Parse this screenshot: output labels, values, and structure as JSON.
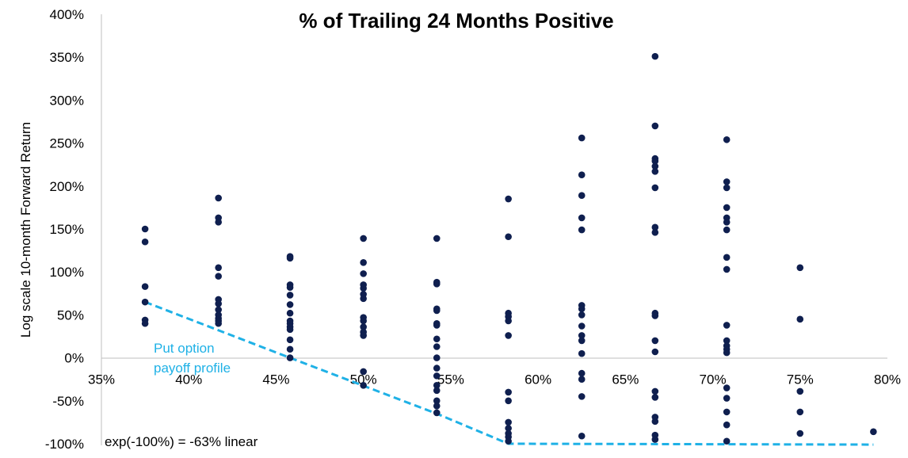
{
  "chart_data": {
    "type": "scatter",
    "title": "% of Trailing 24 Months Positive",
    "xlabel": "",
    "ylabel": "Log scale 10-month Forward Return",
    "xlim": [
      0.35,
      0.8
    ],
    "ylim": [
      -1.0,
      4.0
    ],
    "x_ticks": [
      {
        "value": 0.35,
        "label": "35%"
      },
      {
        "value": 0.4,
        "label": "40%"
      },
      {
        "value": 0.45,
        "label": "45%"
      },
      {
        "value": 0.5,
        "label": "50%"
      },
      {
        "value": 0.55,
        "label": "55%"
      },
      {
        "value": 0.6,
        "label": "60%"
      },
      {
        "value": 0.65,
        "label": "65%"
      },
      {
        "value": 0.7,
        "label": "70%"
      },
      {
        "value": 0.75,
        "label": "75%"
      },
      {
        "value": 0.8,
        "label": "80%"
      }
    ],
    "y_ticks": [
      {
        "value": 4.0,
        "label": "400%"
      },
      {
        "value": 3.5,
        "label": "350%"
      },
      {
        "value": 3.0,
        "label": "300%"
      },
      {
        "value": 2.5,
        "label": "250%"
      },
      {
        "value": 2.0,
        "label": "200%"
      },
      {
        "value": 1.5,
        "label": "150%"
      },
      {
        "value": 1.0,
        "label": "100%"
      },
      {
        "value": 0.5,
        "label": "50%"
      },
      {
        "value": 0.0,
        "label": "0%"
      },
      {
        "value": -0.5,
        "label": "-50%"
      },
      {
        "value": -1.0,
        "label": "-100%"
      }
    ],
    "grid": false,
    "legend": "none",
    "colors": {
      "points": "#0f1f4f",
      "put_line": "#1fb1e6",
      "axis": "#bfbfbf"
    },
    "series": [
      {
        "color": "#0f1f4f",
        "points": [
          {
            "x": 0.375,
            "y": 1.5
          },
          {
            "x": 0.375,
            "y": 1.35
          },
          {
            "x": 0.375,
            "y": 0.83
          },
          {
            "x": 0.375,
            "y": 0.65
          },
          {
            "x": 0.375,
            "y": 0.44
          },
          {
            "x": 0.375,
            "y": 0.4
          },
          {
            "x": 0.417,
            "y": 1.86
          },
          {
            "x": 0.417,
            "y": 1.63
          },
          {
            "x": 0.417,
            "y": 1.58
          },
          {
            "x": 0.417,
            "y": 1.05
          },
          {
            "x": 0.417,
            "y": 0.95
          },
          {
            "x": 0.417,
            "y": 0.68
          },
          {
            "x": 0.417,
            "y": 0.63
          },
          {
            "x": 0.417,
            "y": 0.56
          },
          {
            "x": 0.417,
            "y": 0.5
          },
          {
            "x": 0.417,
            "y": 0.46
          },
          {
            "x": 0.417,
            "y": 0.43
          },
          {
            "x": 0.417,
            "y": 0.4
          },
          {
            "x": 0.458,
            "y": 1.18
          },
          {
            "x": 0.458,
            "y": 1.16
          },
          {
            "x": 0.458,
            "y": 0.85
          },
          {
            "x": 0.458,
            "y": 0.82
          },
          {
            "x": 0.458,
            "y": 0.73
          },
          {
            "x": 0.458,
            "y": 0.62
          },
          {
            "x": 0.458,
            "y": 0.52
          },
          {
            "x": 0.458,
            "y": 0.43
          },
          {
            "x": 0.458,
            "y": 0.4
          },
          {
            "x": 0.458,
            "y": 0.36
          },
          {
            "x": 0.458,
            "y": 0.33
          },
          {
            "x": 0.458,
            "y": 0.21
          },
          {
            "x": 0.458,
            "y": 0.1
          },
          {
            "x": 0.458,
            "y": 0.0
          },
          {
            "x": 0.5,
            "y": 1.39
          },
          {
            "x": 0.5,
            "y": 1.11
          },
          {
            "x": 0.5,
            "y": 0.98
          },
          {
            "x": 0.5,
            "y": 0.85
          },
          {
            "x": 0.5,
            "y": 0.81
          },
          {
            "x": 0.5,
            "y": 0.74
          },
          {
            "x": 0.5,
            "y": 0.69
          },
          {
            "x": 0.5,
            "y": 0.47
          },
          {
            "x": 0.5,
            "y": 0.43
          },
          {
            "x": 0.5,
            "y": 0.36
          },
          {
            "x": 0.5,
            "y": 0.3
          },
          {
            "x": 0.5,
            "y": 0.26
          },
          {
            "x": 0.5,
            "y": -0.16
          },
          {
            "x": 0.5,
            "y": -0.32
          },
          {
            "x": 0.542,
            "y": 1.39
          },
          {
            "x": 0.542,
            "y": 0.88
          },
          {
            "x": 0.542,
            "y": 0.86
          },
          {
            "x": 0.542,
            "y": 0.57
          },
          {
            "x": 0.542,
            "y": 0.55
          },
          {
            "x": 0.542,
            "y": 0.4
          },
          {
            "x": 0.542,
            "y": 0.38
          },
          {
            "x": 0.542,
            "y": 0.22
          },
          {
            "x": 0.542,
            "y": 0.13
          },
          {
            "x": 0.542,
            "y": 0.0
          },
          {
            "x": 0.542,
            "y": -0.12
          },
          {
            "x": 0.542,
            "y": -0.21
          },
          {
            "x": 0.542,
            "y": -0.32
          },
          {
            "x": 0.542,
            "y": -0.38
          },
          {
            "x": 0.542,
            "y": -0.5
          },
          {
            "x": 0.542,
            "y": -0.56
          },
          {
            "x": 0.542,
            "y": -0.64
          },
          {
            "x": 0.583,
            "y": 1.85
          },
          {
            "x": 0.583,
            "y": 1.41
          },
          {
            "x": 0.583,
            "y": 0.52
          },
          {
            "x": 0.583,
            "y": 0.48
          },
          {
            "x": 0.583,
            "y": 0.43
          },
          {
            "x": 0.583,
            "y": 0.26
          },
          {
            "x": 0.583,
            "y": -0.4
          },
          {
            "x": 0.583,
            "y": -0.5
          },
          {
            "x": 0.583,
            "y": -0.75
          },
          {
            "x": 0.583,
            "y": -0.82
          },
          {
            "x": 0.583,
            "y": -0.88
          },
          {
            "x": 0.583,
            "y": -0.92
          },
          {
            "x": 0.583,
            "y": -0.97
          },
          {
            "x": 0.625,
            "y": 2.56
          },
          {
            "x": 0.625,
            "y": 2.13
          },
          {
            "x": 0.625,
            "y": 1.89
          },
          {
            "x": 0.625,
            "y": 1.63
          },
          {
            "x": 0.625,
            "y": 1.49
          },
          {
            "x": 0.625,
            "y": 0.61
          },
          {
            "x": 0.625,
            "y": 0.57
          },
          {
            "x": 0.625,
            "y": 0.5
          },
          {
            "x": 0.625,
            "y": 0.37
          },
          {
            "x": 0.625,
            "y": 0.26
          },
          {
            "x": 0.625,
            "y": 0.2
          },
          {
            "x": 0.625,
            "y": 0.05
          },
          {
            "x": 0.625,
            "y": -0.18
          },
          {
            "x": 0.625,
            "y": -0.25
          },
          {
            "x": 0.625,
            "y": -0.45
          },
          {
            "x": 0.625,
            "y": -0.91
          },
          {
            "x": 0.667,
            "y": 3.51
          },
          {
            "x": 0.667,
            "y": 2.7
          },
          {
            "x": 0.667,
            "y": 2.32
          },
          {
            "x": 0.667,
            "y": 2.29
          },
          {
            "x": 0.667,
            "y": 2.23
          },
          {
            "x": 0.667,
            "y": 2.17
          },
          {
            "x": 0.667,
            "y": 1.98
          },
          {
            "x": 0.667,
            "y": 1.52
          },
          {
            "x": 0.667,
            "y": 1.46
          },
          {
            "x": 0.667,
            "y": 0.52
          },
          {
            "x": 0.667,
            "y": 0.49
          },
          {
            "x": 0.667,
            "y": 0.2
          },
          {
            "x": 0.667,
            "y": 0.07
          },
          {
            "x": 0.667,
            "y": -0.39
          },
          {
            "x": 0.667,
            "y": -0.46
          },
          {
            "x": 0.667,
            "y": -0.69
          },
          {
            "x": 0.667,
            "y": -0.74
          },
          {
            "x": 0.667,
            "y": -0.9
          },
          {
            "x": 0.667,
            "y": -0.95
          },
          {
            "x": 0.708,
            "y": 2.54
          },
          {
            "x": 0.708,
            "y": 2.05
          },
          {
            "x": 0.708,
            "y": 1.98
          },
          {
            "x": 0.708,
            "y": 1.75
          },
          {
            "x": 0.708,
            "y": 1.63
          },
          {
            "x": 0.708,
            "y": 1.58
          },
          {
            "x": 0.708,
            "y": 1.49
          },
          {
            "x": 0.708,
            "y": 1.17
          },
          {
            "x": 0.708,
            "y": 1.03
          },
          {
            "x": 0.708,
            "y": 0.38
          },
          {
            "x": 0.708,
            "y": 0.2
          },
          {
            "x": 0.708,
            "y": 0.14
          },
          {
            "x": 0.708,
            "y": 0.1
          },
          {
            "x": 0.708,
            "y": 0.06
          },
          {
            "x": 0.708,
            "y": -0.35
          },
          {
            "x": 0.708,
            "y": -0.47
          },
          {
            "x": 0.708,
            "y": -0.63
          },
          {
            "x": 0.708,
            "y": -0.78
          },
          {
            "x": 0.708,
            "y": -0.97
          },
          {
            "x": 0.75,
            "y": 1.05
          },
          {
            "x": 0.75,
            "y": 0.45
          },
          {
            "x": 0.75,
            "y": -0.39
          },
          {
            "x": 0.75,
            "y": -0.63
          },
          {
            "x": 0.75,
            "y": -0.88
          },
          {
            "x": 0.792,
            "y": -0.86
          }
        ]
      }
    ],
    "annotations": [
      {
        "text_lines": [
          "Put option",
          "payoff profile"
        ],
        "color": "#1fb1e6"
      },
      {
        "text": "exp(-100%) = -63% linear",
        "color": "#000000"
      }
    ],
    "reference_line": {
      "style": "dashed",
      "color": "#1fb1e6",
      "points": [
        {
          "x": 0.375,
          "y": 0.65
        },
        {
          "x": 0.458,
          "y": 0.0
        },
        {
          "x": 0.542,
          "y": -0.65
        },
        {
          "x": 0.583,
          "y": -1.0
        },
        {
          "x": 0.792,
          "y": -1.01
        }
      ]
    }
  }
}
